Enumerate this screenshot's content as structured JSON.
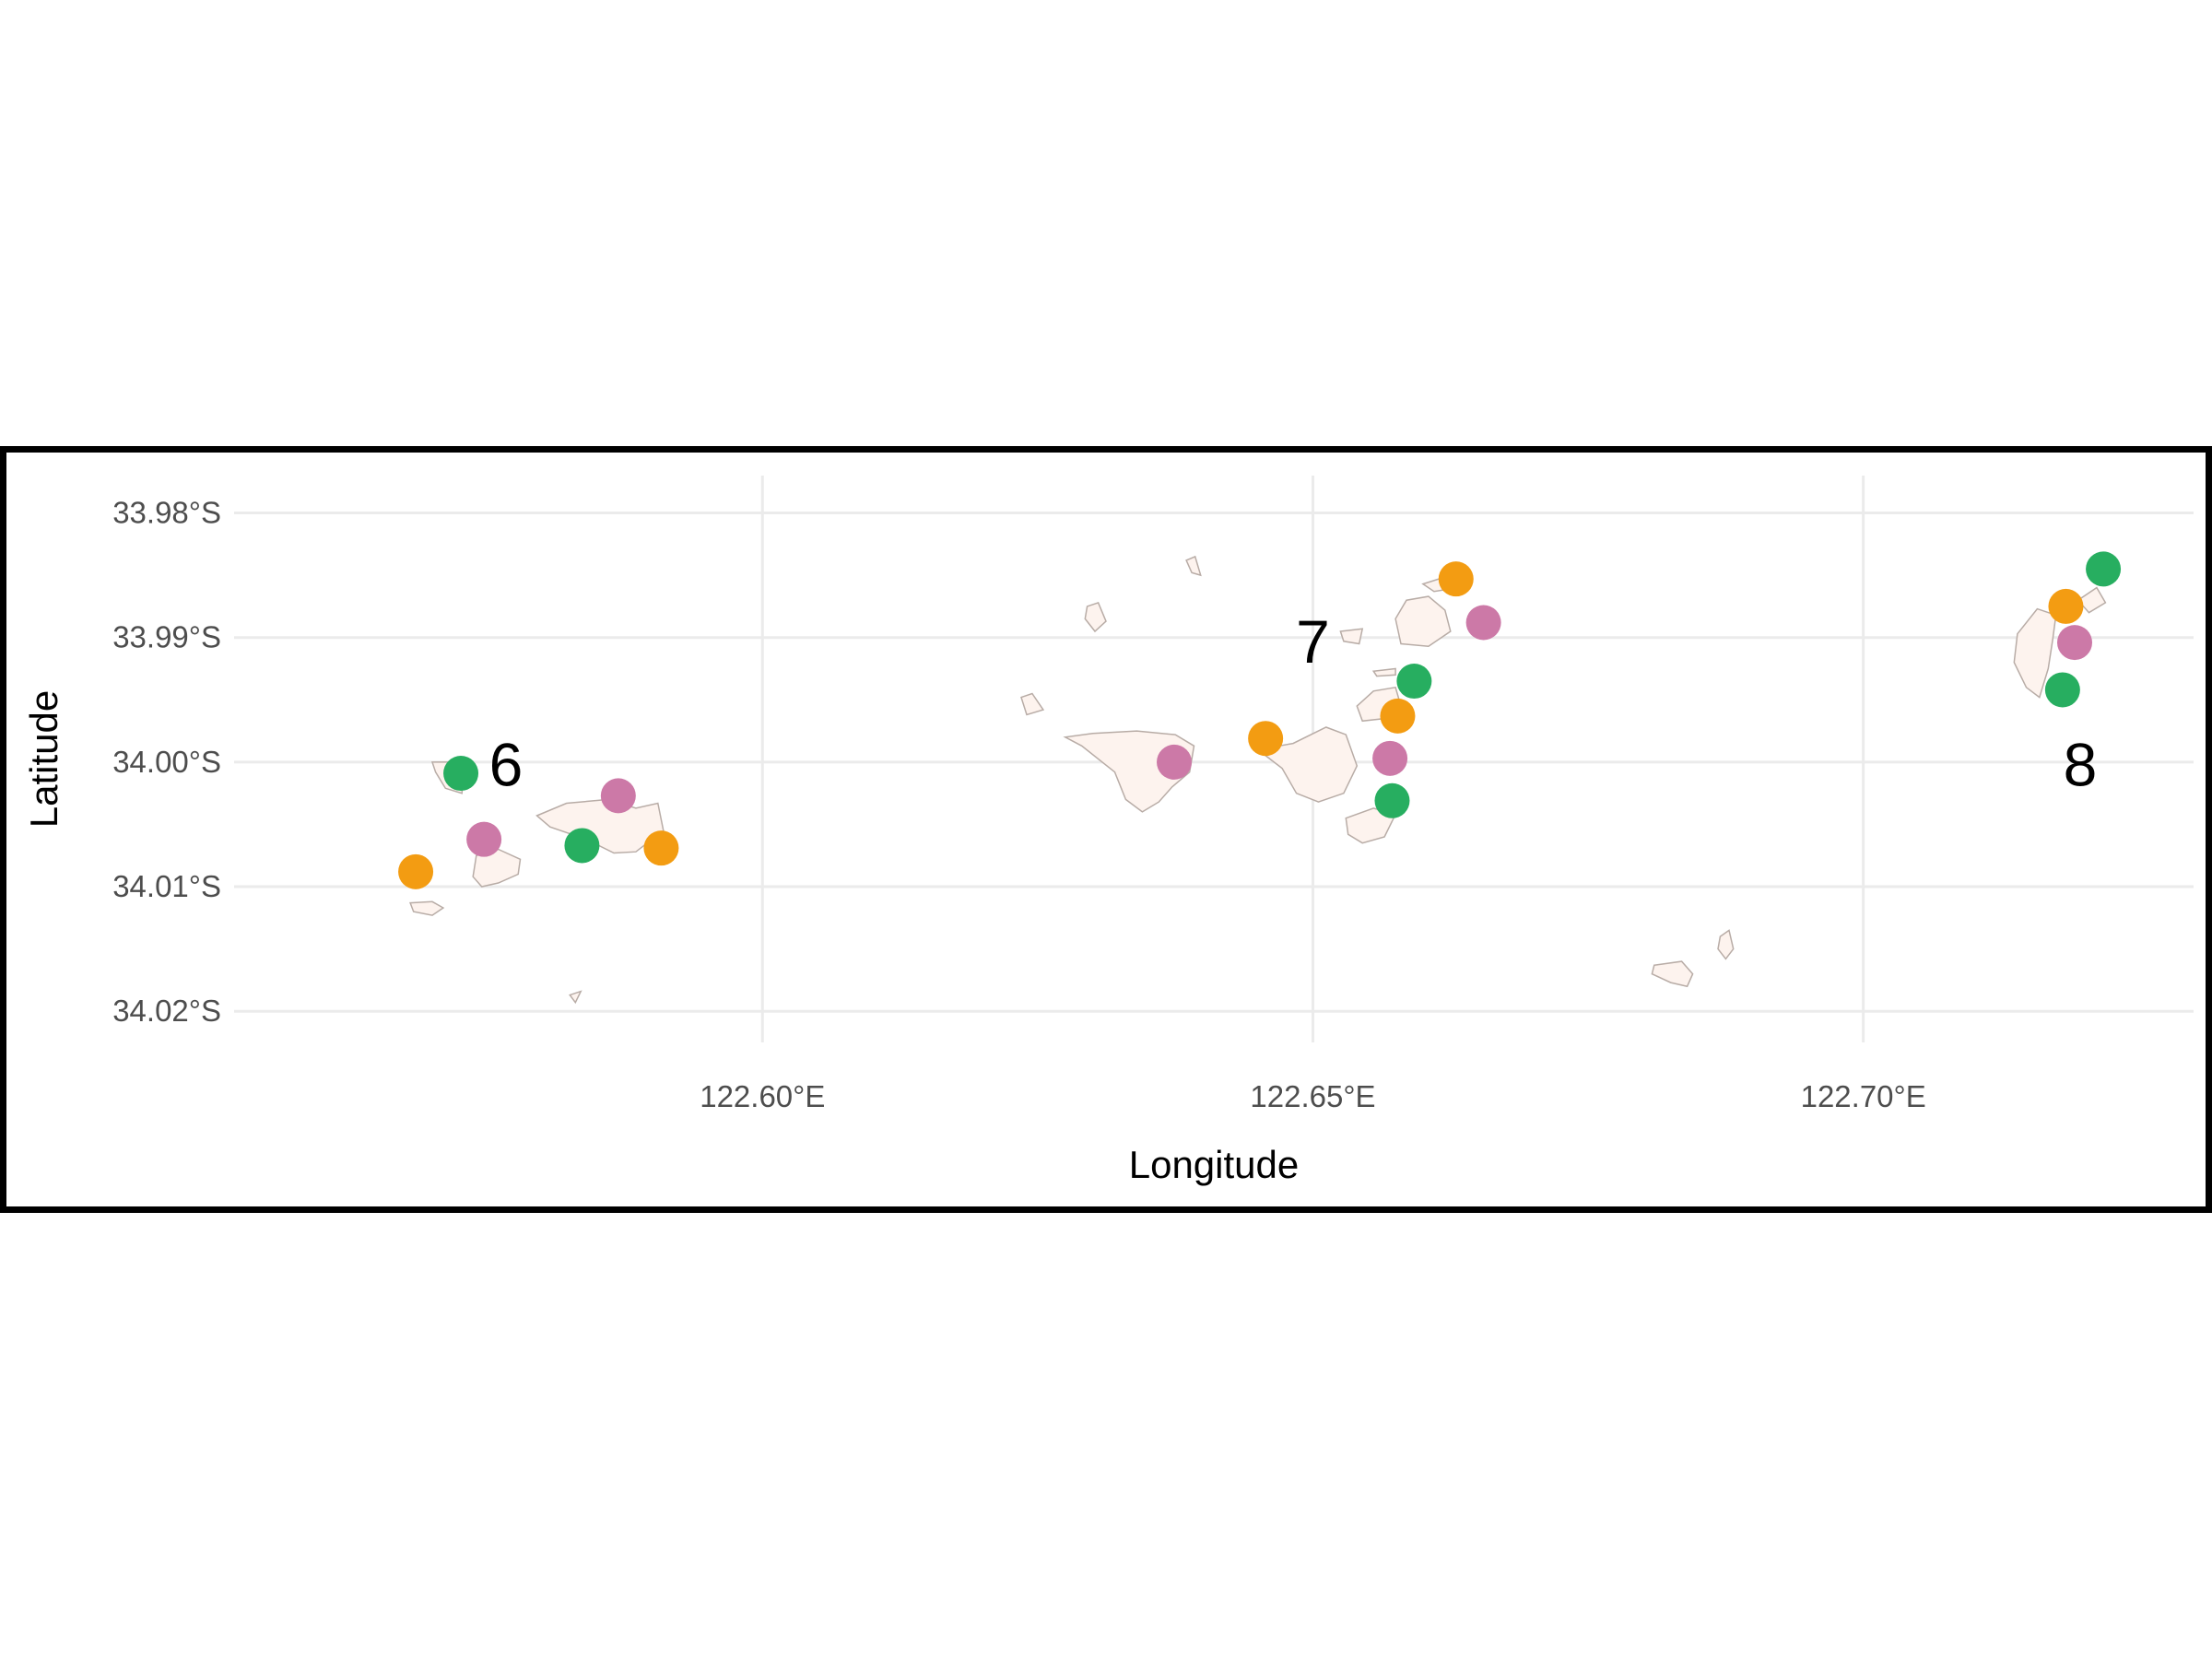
{
  "chart_data": {
    "type": "scatter",
    "xlabel": "Longitude",
    "ylabel": "Latitude",
    "xlim": [
      122.552,
      122.73
    ],
    "ylim": [
      -34.0225,
      -33.977
    ],
    "x_ticks": [
      {
        "value": 122.6,
        "label": "122.60°E"
      },
      {
        "value": 122.65,
        "label": "122.65°E"
      },
      {
        "value": 122.7,
        "label": "122.70°E"
      }
    ],
    "y_ticks": [
      {
        "value": -33.98,
        "label": "33.98°S"
      },
      {
        "value": -33.99,
        "label": "33.99°S"
      },
      {
        "value": -34.0,
        "label": "34.00°S"
      },
      {
        "value": -34.01,
        "label": "34.01°S"
      },
      {
        "value": -34.02,
        "label": "34.02°S"
      }
    ],
    "grid": true,
    "legend": "none",
    "colors": {
      "green": "#27ae60",
      "orange": "#f39c12",
      "pink": "#cc79a7",
      "land": "#fdf3ee",
      "coast": "#b8aca6"
    },
    "site_labels": [
      {
        "text": "6",
        "x": 122.5767,
        "y": -34.0002
      },
      {
        "text": "7",
        "x": 122.65,
        "y": -33.9903
      },
      {
        "text": "8",
        "x": 122.7197,
        "y": -34.0002
      }
    ],
    "points": [
      {
        "x": 122.5726,
        "y": -34.0009,
        "color": "green"
      },
      {
        "x": 122.5836,
        "y": -34.0067,
        "color": "green"
      },
      {
        "x": 122.5747,
        "y": -34.0062,
        "color": "pink"
      },
      {
        "x": 122.5869,
        "y": -34.0027,
        "color": "pink"
      },
      {
        "x": 122.5685,
        "y": -34.0088,
        "color": "orange"
      },
      {
        "x": 122.5908,
        "y": -34.0069,
        "color": "orange"
      },
      {
        "x": 122.6374,
        "y": -34.0,
        "color": "pink"
      },
      {
        "x": 122.6457,
        "y": -33.9981,
        "color": "orange"
      },
      {
        "x": 122.657,
        "y": -33.9997,
        "color": "pink"
      },
      {
        "x": 122.6572,
        "y": -34.0031,
        "color": "green"
      },
      {
        "x": 122.6577,
        "y": -33.9963,
        "color": "orange"
      },
      {
        "x": 122.6592,
        "y": -33.9935,
        "color": "green"
      },
      {
        "x": 122.663,
        "y": -33.9853,
        "color": "orange"
      },
      {
        "x": 122.6655,
        "y": -33.9888,
        "color": "pink"
      },
      {
        "x": 122.7184,
        "y": -33.9875,
        "color": "orange"
      },
      {
        "x": 122.7218,
        "y": -33.9845,
        "color": "green"
      },
      {
        "x": 122.7192,
        "y": -33.9904,
        "color": "pink"
      },
      {
        "x": 122.7181,
        "y": -33.9942,
        "color": "green"
      }
    ],
    "islands": [
      [
        [
          122.57,
          -34.0
        ],
        [
          122.5719,
          -34.0
        ],
        [
          122.5728,
          -34.0013
        ],
        [
          122.5727,
          -34.0025
        ],
        [
          122.5712,
          -34.0021
        ],
        [
          122.5703,
          -34.0008
        ]
      ],
      [
        [
          122.5795,
          -34.0043
        ],
        [
          122.5822,
          -34.0033
        ],
        [
          122.586,
          -34.003
        ],
        [
          122.5885,
          -34.0037
        ],
        [
          122.5905,
          -34.0033
        ],
        [
          122.591,
          -34.0055
        ],
        [
          122.5885,
          -34.0072
        ],
        [
          122.5865,
          -34.0073
        ],
        [
          122.584,
          -34.0062
        ],
        [
          122.5807,
          -34.0052
        ]
      ],
      [
        [
          122.574,
          -34.0075
        ],
        [
          122.576,
          -34.007
        ],
        [
          122.578,
          -34.0078
        ],
        [
          122.5778,
          -34.009
        ],
        [
          122.576,
          -34.0097
        ],
        [
          122.5745,
          -34.01
        ],
        [
          122.5737,
          -34.0092
        ]
      ],
      [
        [
          122.568,
          -34.0113
        ],
        [
          122.57,
          -34.0112
        ],
        [
          122.571,
          -34.0117
        ],
        [
          122.57,
          -34.0123
        ],
        [
          122.5683,
          -34.012
        ]
      ],
      [
        [
          122.5825,
          -34.0187
        ],
        [
          122.5835,
          -34.0184
        ],
        [
          122.583,
          -34.0193
        ]
      ],
      [
        [
          122.634,
          -33.9975
        ],
        [
          122.6375,
          -33.9978
        ],
        [
          122.6392,
          -33.9987
        ],
        [
          122.6388,
          -34.0008
        ],
        [
          122.6372,
          -34.002
        ],
        [
          122.636,
          -34.0032
        ],
        [
          122.6345,
          -34.004
        ],
        [
          122.633,
          -34.003
        ],
        [
          122.632,
          -34.0008
        ],
        [
          122.629,
          -33.9987
        ],
        [
          122.6275,
          -33.998
        ],
        [
          122.63,
          -33.9977
        ]
      ],
      [
        [
          122.645,
          -33.999
        ],
        [
          122.6482,
          -33.9985
        ],
        [
          122.6512,
          -33.9972
        ],
        [
          122.653,
          -33.9978
        ],
        [
          122.654,
          -34.0003
        ],
        [
          122.6528,
          -34.0025
        ],
        [
          122.6505,
          -34.0032
        ],
        [
          122.6485,
          -34.0025
        ],
        [
          122.6472,
          -34.0005
        ]
      ],
      [
        [
          122.653,
          -34.0045
        ],
        [
          122.6555,
          -34.0037
        ],
        [
          122.6575,
          -34.0042
        ],
        [
          122.6565,
          -34.006
        ],
        [
          122.6545,
          -34.0065
        ],
        [
          122.6532,
          -34.0058
        ]
      ],
      [
        [
          122.654,
          -33.9955
        ],
        [
          122.6555,
          -33.9943
        ],
        [
          122.6575,
          -33.994
        ],
        [
          122.658,
          -33.9955
        ],
        [
          122.6565,
          -33.9965
        ],
        [
          122.6545,
          -33.9967
        ]
      ],
      [
        [
          122.6555,
          -33.9927
        ],
        [
          122.6575,
          -33.9925
        ],
        [
          122.6575,
          -33.993
        ],
        [
          122.6558,
          -33.9931
        ]
      ],
      [
        [
          122.6575,
          -33.9885
        ],
        [
          122.6585,
          -33.987
        ],
        [
          122.6605,
          -33.9867
        ],
        [
          122.662,
          -33.9878
        ],
        [
          122.6625,
          -33.9895
        ],
        [
          122.6605,
          -33.9907
        ],
        [
          122.658,
          -33.9905
        ]
      ],
      [
        [
          122.66,
          -33.9857
        ],
        [
          122.6625,
          -33.985
        ],
        [
          122.6632,
          -33.986
        ],
        [
          122.661,
          -33.9863
        ]
      ],
      [
        [
          122.6525,
          -33.9895
        ],
        [
          122.6545,
          -33.9893
        ],
        [
          122.6542,
          -33.9905
        ],
        [
          122.6528,
          -33.9903
        ]
      ],
      [
        [
          122.6295,
          -33.9875
        ],
        [
          122.6305,
          -33.9872
        ],
        [
          122.6312,
          -33.9887
        ],
        [
          122.6302,
          -33.9895
        ],
        [
          122.6293,
          -33.9885
        ]
      ],
      [
        [
          122.6235,
          -33.9948
        ],
        [
          122.6245,
          -33.9945
        ],
        [
          122.6255,
          -33.9958
        ],
        [
          122.624,
          -33.9962
        ]
      ],
      [
        [
          122.6385,
          -33.9838
        ],
        [
          122.6393,
          -33.9835
        ],
        [
          122.6398,
          -33.985
        ],
        [
          122.639,
          -33.9848
        ]
      ],
      [
        [
          122.681,
          -34.0163
        ],
        [
          122.6835,
          -34.016
        ],
        [
          122.6845,
          -34.017
        ],
        [
          122.684,
          -34.018
        ],
        [
          122.6825,
          -34.0177
        ],
        [
          122.6808,
          -34.017
        ]
      ],
      [
        [
          122.687,
          -34.014
        ],
        [
          122.6878,
          -34.0135
        ],
        [
          122.6882,
          -34.015
        ],
        [
          122.6875,
          -34.0158
        ],
        [
          122.6868,
          -34.015
        ]
      ],
      [
        [
          122.714,
          -33.9897
        ],
        [
          122.7158,
          -33.9877
        ],
        [
          122.7175,
          -33.9882
        ],
        [
          122.7172,
          -33.9902
        ],
        [
          122.7168,
          -33.9925
        ],
        [
          122.716,
          -33.9948
        ],
        [
          122.7148,
          -33.994
        ],
        [
          122.7137,
          -33.992
        ]
      ],
      [
        [
          122.7195,
          -33.987
        ],
        [
          122.7212,
          -33.986
        ],
        [
          122.722,
          -33.9872
        ],
        [
          122.7205,
          -33.988
        ]
      ]
    ]
  }
}
